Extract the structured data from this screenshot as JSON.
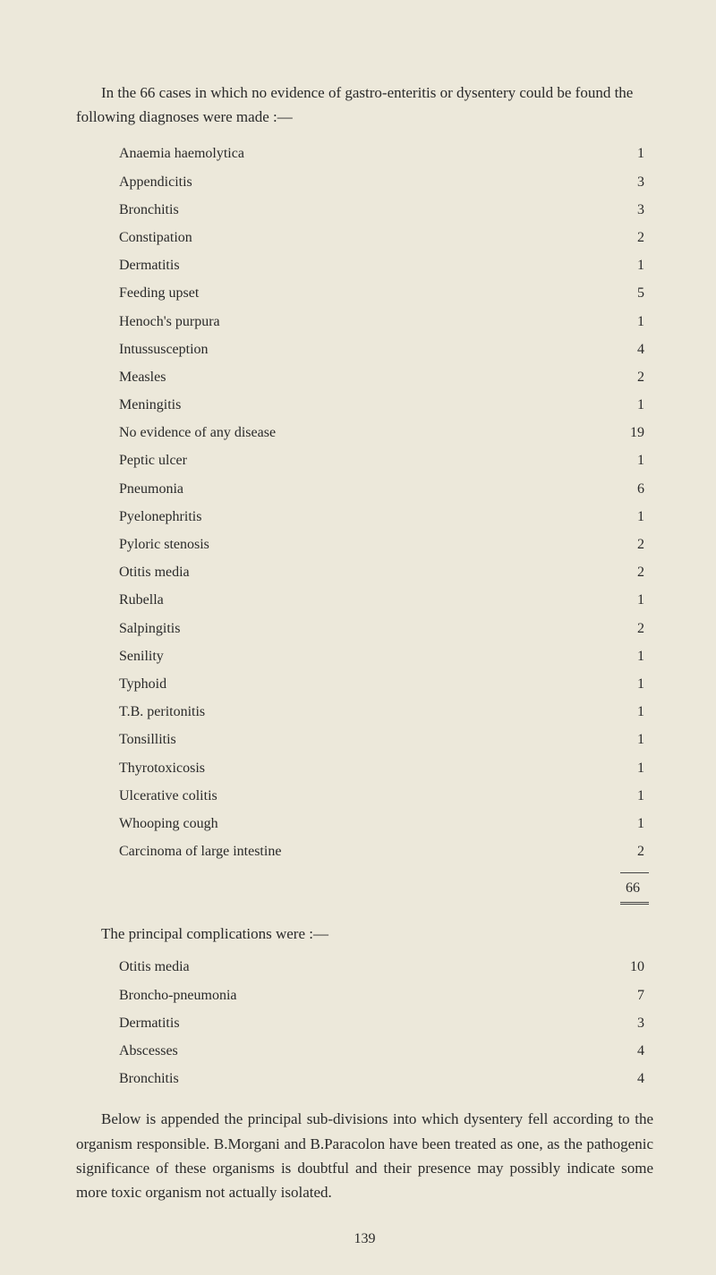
{
  "intro": "In the 66 cases in which no evidence of gastro-enteritis or dysentery could be found the following diagnoses were made :—",
  "diagnoses": [
    {
      "label": "Anaemia haemolytica",
      "value": "1"
    },
    {
      "label": "Appendicitis",
      "value": "3"
    },
    {
      "label": "Bronchitis",
      "value": "3"
    },
    {
      "label": "Constipation",
      "value": "2"
    },
    {
      "label": "Dermatitis",
      "value": "1"
    },
    {
      "label": "Feeding upset",
      "value": "5"
    },
    {
      "label": "Henoch's purpura",
      "value": "1"
    },
    {
      "label": "Intussusception",
      "value": "4"
    },
    {
      "label": "Measles",
      "value": "2"
    },
    {
      "label": "Meningitis",
      "value": "1"
    },
    {
      "label": "No evidence of any disease",
      "value": "19"
    },
    {
      "label": "Peptic ulcer",
      "value": "1"
    },
    {
      "label": "Pneumonia",
      "value": "6"
    },
    {
      "label": "Pyelonephritis",
      "value": "1"
    },
    {
      "label": "Pyloric stenosis",
      "value": "2"
    },
    {
      "label": "Otitis media",
      "value": "2"
    },
    {
      "label": "Rubella",
      "value": "1"
    },
    {
      "label": "Salpingitis",
      "value": "2"
    },
    {
      "label": "Senility",
      "value": "1"
    },
    {
      "label": "Typhoid",
      "value": "1"
    },
    {
      "label": "T.B. peritonitis",
      "value": "1"
    },
    {
      "label": "Tonsillitis",
      "value": "1"
    },
    {
      "label": "Thyrotoxicosis",
      "value": "1"
    },
    {
      "label": "Ulcerative colitis",
      "value": "1"
    },
    {
      "label": "Whooping cough",
      "value": "1"
    },
    {
      "label": "Carcinoma of large intestine",
      "value": "2"
    }
  ],
  "total": "66",
  "complications_title": "The principal complications were :—",
  "complications": [
    {
      "label": "Otitis media",
      "value": "10"
    },
    {
      "label": "Broncho-pneumonia",
      "value": "7"
    },
    {
      "label": "Dermatitis",
      "value": "3"
    },
    {
      "label": "Abscesses",
      "value": "4"
    },
    {
      "label": "Bronchitis",
      "value": "4"
    }
  ],
  "conclusion": "Below is appended the principal sub-divisions into which dysentery fell according to the organism responsible. B.Morgani and B.Paracolon have been treated as one, as the pathogenic significance of these organisms is doubtful and their presence may possibly indicate some more toxic organism not actually isolated.",
  "page_number": "139"
}
